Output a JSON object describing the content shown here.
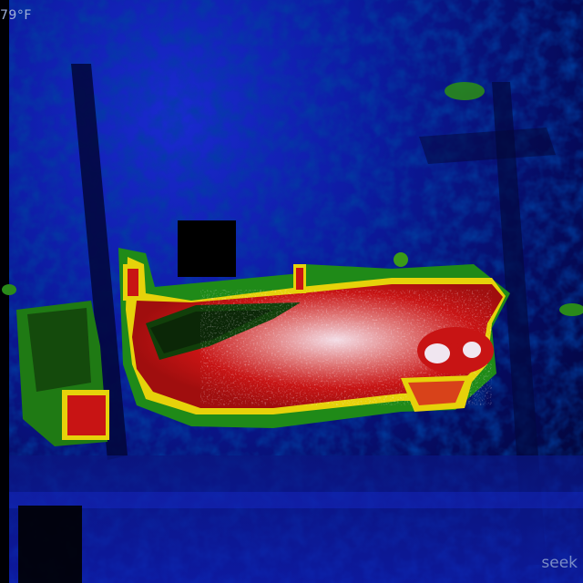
{
  "overlay": {
    "temperature_readout": "79°F",
    "brand": "seek"
  },
  "colors": {
    "cold_background": "#0c1aa0",
    "deep_shadow": "#02042a",
    "warm_green": "#2a8a1a",
    "hot_yellow": "#e6d20a",
    "hotter_red": "#c81414",
    "hottest_white": "#f0e6f0"
  },
  "scene": {
    "subject": "thermal-image-of-vehicle"
  }
}
